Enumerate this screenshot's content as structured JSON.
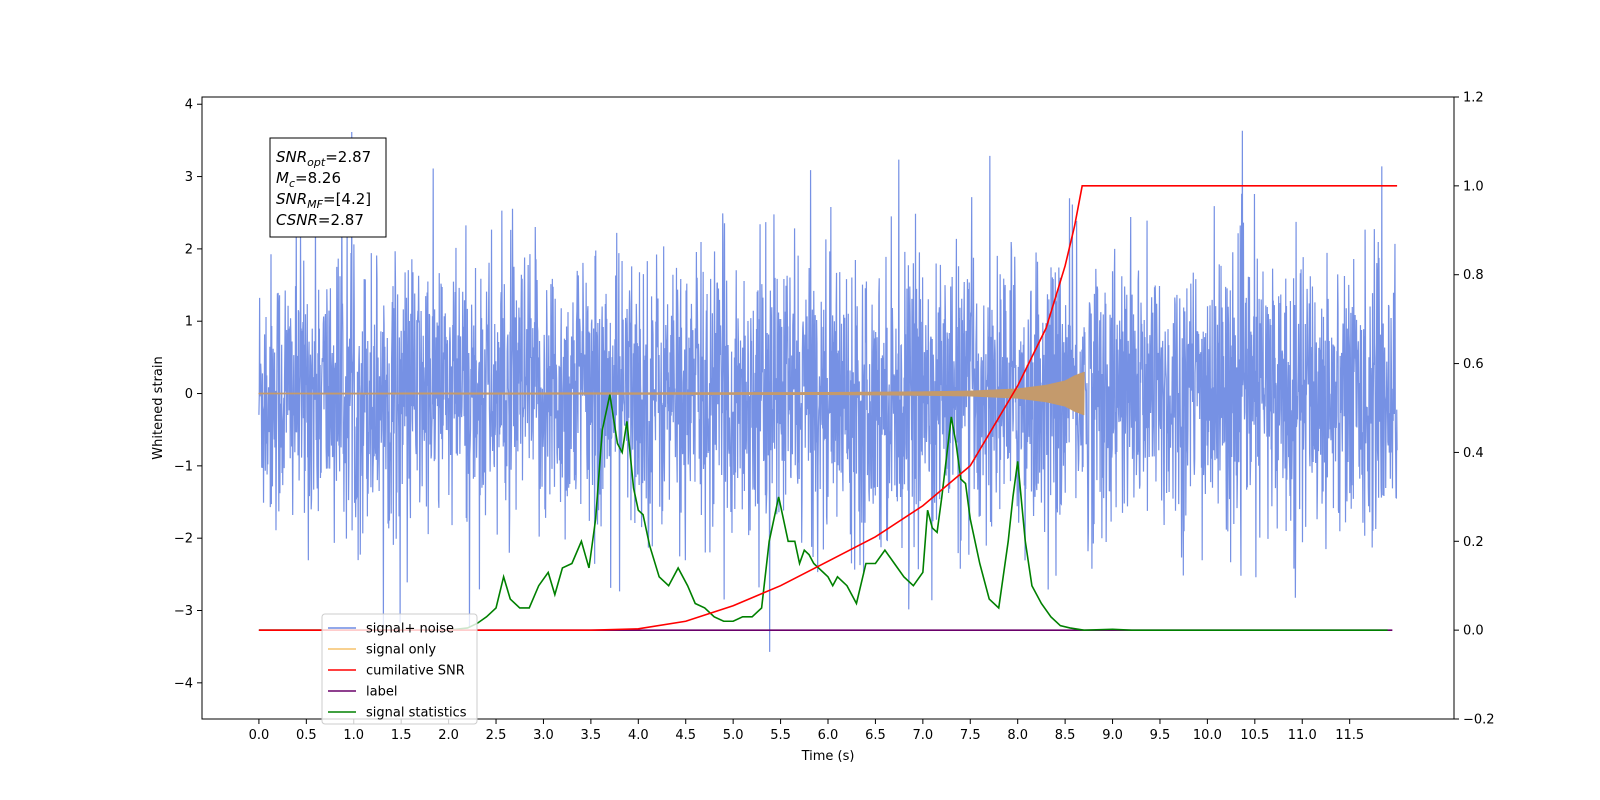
{
  "chart_data": {
    "type": "line",
    "xlabel": "Time (s)",
    "ylabel": "Whitened strain",
    "xlim": [
      -0.6,
      12.6
    ],
    "ylim": [
      -4.5,
      4.1
    ],
    "y2lim": [
      -0.2,
      1.2
    ],
    "x_ticks": [
      0.0,
      0.5,
      1.0,
      1.5,
      2.0,
      2.5,
      3.0,
      3.5,
      4.0,
      4.5,
      5.0,
      5.5,
      6.0,
      6.5,
      7.0,
      7.5,
      8.0,
      8.5,
      9.0,
      9.5,
      10.0,
      10.5,
      11.0,
      11.5
    ],
    "x_tick_labels": [
      "0.0",
      "0.5",
      "1.0",
      "1.5",
      "2.0",
      "2.5",
      "3.0",
      "3.5",
      "4.0",
      "4.5",
      "5.0",
      "5.5",
      "6.0",
      "6.5",
      "7.0",
      "7.5",
      "8.0",
      "8.5",
      "9.0",
      "9.5",
      "10.0",
      "10.5",
      "11.0",
      "11.5"
    ],
    "y_ticks": [
      -4,
      -3,
      -2,
      -1,
      0,
      1,
      2,
      3,
      4
    ],
    "y_tick_labels": [
      "−4",
      "−3",
      "−2",
      "−1",
      "0",
      "1",
      "2",
      "3",
      "4"
    ],
    "y2_ticks": [
      -0.2,
      0.0,
      0.2,
      0.4,
      0.6,
      0.8,
      1.0,
      1.2
    ],
    "y2_tick_labels": [
      "−0.2",
      "0.0",
      "0.2",
      "0.4",
      "0.6",
      "0.8",
      "1.0",
      "1.2"
    ],
    "grid": false,
    "legend_position": "lower-left",
    "annotation": {
      "lines": [
        {
          "main": "SNR",
          "sub": "opt",
          "rest": "=2.87"
        },
        {
          "main": "M",
          "sub": "c",
          "rest": "=8.26"
        },
        {
          "main": "SNR",
          "sub": "MF",
          "rest": "=[4.2]"
        },
        {
          "main": "CSNR",
          "sub": "",
          "rest": "=2.87"
        }
      ]
    },
    "series": [
      {
        "name": "signal+ noise",
        "axis": "left",
        "color": "#6f8be3",
        "x_range": [
          0.0,
          12.0
        ],
        "description_values": {
          "approx_std": 1.0,
          "peak_max": 3.7,
          "peak_min": -4.1
        }
      },
      {
        "name": "signal only",
        "axis": "left",
        "color": "#f5c26b",
        "x_range": [
          0.0,
          8.7
        ],
        "envelope": {
          "x": [
            0.0,
            4.0,
            6.0,
            7.0,
            7.5,
            8.0,
            8.3,
            8.5,
            8.6,
            8.7
          ],
          "y": [
            0.01,
            0.015,
            0.02,
            0.03,
            0.04,
            0.07,
            0.12,
            0.18,
            0.25,
            0.3
          ]
        }
      },
      {
        "name": "cumilative SNR",
        "axis": "right",
        "color": "#ff0000",
        "x": [
          0.0,
          3.5,
          4.0,
          4.5,
          5.0,
          5.5,
          6.0,
          6.5,
          7.0,
          7.5,
          8.0,
          8.3,
          8.5,
          8.6,
          8.68,
          8.7,
          11.5,
          12.0
        ],
        "y": [
          0.0,
          0.0,
          0.003,
          0.02,
          0.055,
          0.1,
          0.155,
          0.21,
          0.28,
          0.37,
          0.55,
          0.68,
          0.82,
          0.91,
          1.0,
          1.0,
          1.0,
          1.0
        ]
      },
      {
        "name": "label",
        "axis": "right",
        "color": "#6a006a",
        "x": [
          0.0,
          11.95
        ],
        "y": [
          0.0,
          0.0
        ]
      },
      {
        "name": "signal statistics",
        "axis": "right",
        "color": "#008000",
        "x": [
          0.0,
          2.0,
          2.2,
          2.3,
          2.4,
          2.5,
          2.58,
          2.65,
          2.75,
          2.85,
          2.95,
          3.05,
          3.12,
          3.2,
          3.3,
          3.4,
          3.48,
          3.55,
          3.62,
          3.7,
          3.78,
          3.83,
          3.88,
          3.95,
          4.0,
          4.05,
          4.12,
          4.22,
          4.32,
          4.42,
          4.52,
          4.6,
          4.7,
          4.8,
          4.9,
          5.0,
          5.1,
          5.2,
          5.3,
          5.38,
          5.48,
          5.58,
          5.65,
          5.7,
          5.75,
          5.8,
          5.85,
          5.9,
          5.95,
          6.0,
          6.05,
          6.1,
          6.2,
          6.3,
          6.4,
          6.5,
          6.6,
          6.7,
          6.8,
          6.9,
          7.0,
          7.05,
          7.1,
          7.15,
          7.2,
          7.3,
          7.35,
          7.4,
          7.45,
          7.5,
          7.6,
          7.7,
          7.8,
          7.9,
          7.95,
          8.0,
          8.08,
          8.15,
          8.25,
          8.35,
          8.45,
          8.55,
          8.7,
          9.0,
          9.2,
          11.9
        ],
        "y": [
          0.0,
          0.0,
          0.005,
          0.015,
          0.03,
          0.05,
          0.12,
          0.07,
          0.05,
          0.05,
          0.1,
          0.13,
          0.08,
          0.14,
          0.15,
          0.2,
          0.14,
          0.25,
          0.45,
          0.53,
          0.42,
          0.4,
          0.47,
          0.32,
          0.27,
          0.26,
          0.19,
          0.12,
          0.1,
          0.14,
          0.1,
          0.06,
          0.05,
          0.03,
          0.02,
          0.02,
          0.03,
          0.03,
          0.05,
          0.2,
          0.3,
          0.2,
          0.2,
          0.15,
          0.18,
          0.17,
          0.15,
          0.14,
          0.13,
          0.12,
          0.1,
          0.12,
          0.1,
          0.06,
          0.15,
          0.15,
          0.18,
          0.15,
          0.12,
          0.1,
          0.13,
          0.27,
          0.23,
          0.22,
          0.3,
          0.48,
          0.42,
          0.34,
          0.33,
          0.25,
          0.15,
          0.07,
          0.05,
          0.2,
          0.3,
          0.38,
          0.2,
          0.1,
          0.06,
          0.03,
          0.01,
          0.005,
          0.0,
          0.002,
          0.0,
          0.0
        ]
      }
    ]
  }
}
